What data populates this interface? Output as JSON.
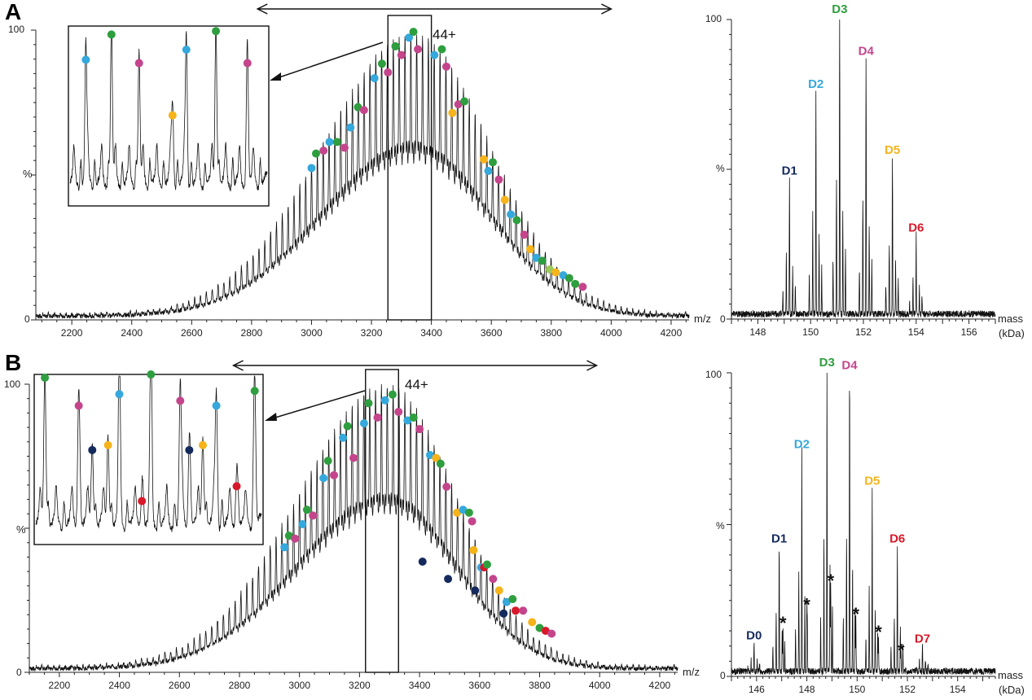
{
  "colors": {
    "green": "#2e9e3f",
    "cyan": "#35a8dc",
    "magenta": "#c4458c",
    "orange": "#f6b31a",
    "navy": "#152a5c",
    "red": "#d7192a",
    "lime": "#9cc95a",
    "trace": "#111111"
  },
  "chart_data": [
    {
      "id": "A-spectrum",
      "panel": "A",
      "type": "line",
      "xlabel": "m/z",
      "ylabel": "%",
      "xlim": [
        2080,
        4260
      ],
      "ylim": [
        0,
        100
      ],
      "x_ticks": [
        2200,
        2400,
        2600,
        2800,
        3000,
        3200,
        3400,
        3600,
        3800,
        4000,
        4200
      ],
      "y_tick_labels": [
        "0",
        "100"
      ],
      "envelope": {
        "center": 3340,
        "width_left": 430,
        "width_right": 360,
        "peak": 97,
        "floor": 2
      },
      "charge_label": "44+",
      "highlight_window_mz": [
        3255,
        3400
      ],
      "range_arrow_mz": [
        2820,
        4000
      ],
      "peak_markers": [
        {
          "mz": 3000,
          "i": 51,
          "c": "cyan"
        },
        {
          "mz": 3015,
          "i": 56,
          "c": "green"
        },
        {
          "mz": 3040,
          "i": 57,
          "c": "magenta"
        },
        {
          "mz": 3060,
          "i": 60,
          "c": "cyan"
        },
        {
          "mz": 3085,
          "i": 60,
          "c": "green"
        },
        {
          "mz": 3110,
          "i": 58,
          "c": "magenta"
        },
        {
          "mz": 3130,
          "i": 65,
          "c": "cyan"
        },
        {
          "mz": 3155,
          "i": 72,
          "c": "green"
        },
        {
          "mz": 3175,
          "i": 71,
          "c": "magenta"
        },
        {
          "mz": 3210,
          "i": 82,
          "c": "cyan"
        },
        {
          "mz": 3235,
          "i": 87,
          "c": "green"
        },
        {
          "mz": 3255,
          "i": 84,
          "c": "magenta"
        },
        {
          "mz": 3280,
          "i": 93,
          "c": "green"
        },
        {
          "mz": 3300,
          "i": 90,
          "c": "magenta"
        },
        {
          "mz": 3325,
          "i": 96,
          "c": "cyan"
        },
        {
          "mz": 3340,
          "i": 98,
          "c": "green"
        },
        {
          "mz": 3355,
          "i": 92,
          "c": "magenta"
        },
        {
          "mz": 3410,
          "i": 90,
          "c": "cyan"
        },
        {
          "mz": 3435,
          "i": 92,
          "c": "green"
        },
        {
          "mz": 3450,
          "i": 86,
          "c": "magenta"
        },
        {
          "mz": 3470,
          "i": 70,
          "c": "orange"
        },
        {
          "mz": 3490,
          "i": 73,
          "c": "magenta"
        },
        {
          "mz": 3510,
          "i": 74,
          "c": "green"
        },
        {
          "mz": 3575,
          "i": 54,
          "c": "orange"
        },
        {
          "mz": 3590,
          "i": 50,
          "c": "cyan"
        },
        {
          "mz": 3605,
          "i": 53,
          "c": "green"
        },
        {
          "mz": 3625,
          "i": 47,
          "c": "magenta"
        },
        {
          "mz": 3645,
          "i": 40,
          "c": "orange"
        },
        {
          "mz": 3665,
          "i": 35,
          "c": "cyan"
        },
        {
          "mz": 3685,
          "i": 33,
          "c": "green"
        },
        {
          "mz": 3710,
          "i": 28,
          "c": "magenta"
        },
        {
          "mz": 3730,
          "i": 23,
          "c": "orange"
        },
        {
          "mz": 3750,
          "i": 20,
          "c": "cyan"
        },
        {
          "mz": 3770,
          "i": 19,
          "c": "green"
        },
        {
          "mz": 3795,
          "i": 16,
          "c": "lime"
        },
        {
          "mz": 3815,
          "i": 15,
          "c": "orange"
        },
        {
          "mz": 3840,
          "i": 14,
          "c": "cyan"
        },
        {
          "mz": 3860,
          "i": 13,
          "c": "green"
        },
        {
          "mz": 3880,
          "i": 11,
          "c": "green"
        },
        {
          "mz": 3905,
          "i": 10,
          "c": "magenta"
        }
      ],
      "inset_markers": [
        {
          "pos": 0.08,
          "i": 0.8,
          "c": "cyan"
        },
        {
          "pos": 0.21,
          "i": 0.95,
          "c": "green"
        },
        {
          "pos": 0.35,
          "i": 0.78,
          "c": "magenta"
        },
        {
          "pos": 0.52,
          "i": 0.47,
          "c": "orange"
        },
        {
          "pos": 0.59,
          "i": 0.86,
          "c": "cyan"
        },
        {
          "pos": 0.74,
          "i": 0.97,
          "c": "green"
        },
        {
          "pos": 0.9,
          "i": 0.78,
          "c": "magenta"
        }
      ]
    },
    {
      "id": "A-deconvoluted",
      "panel": "A",
      "type": "line",
      "xlabel": "mass (kDa)",
      "ylabel": "%",
      "xlim": [
        147,
        157
      ],
      "ylim": [
        0,
        100
      ],
      "x_ticks": [
        148,
        150,
        152,
        154,
        156
      ],
      "y_tick_labels": [
        "0",
        "%",
        "100"
      ],
      "peaks": [
        {
          "label": "D1",
          "mass": 149.2,
          "i": 46,
          "c": "navy"
        },
        {
          "label": "D2",
          "mass": 150.2,
          "i": 75,
          "c": "cyan"
        },
        {
          "label": "D3",
          "mass": 151.1,
          "i": 100,
          "c": "green"
        },
        {
          "label": "D4",
          "mass": 152.1,
          "i": 86,
          "c": "magenta"
        },
        {
          "label": "D5",
          "mass": 153.1,
          "i": 53,
          "c": "orange"
        },
        {
          "label": "D6",
          "mass": 154.0,
          "i": 27,
          "c": "red"
        }
      ]
    },
    {
      "id": "B-spectrum",
      "panel": "B",
      "type": "line",
      "xlabel": "m/z",
      "ylabel": "%",
      "xlim": [
        2100,
        4260
      ],
      "ylim": [
        0,
        100
      ],
      "x_ticks": [
        2200,
        2400,
        2600,
        2800,
        3000,
        3200,
        3400,
        3600,
        3800,
        4000,
        4200
      ],
      "y_tick_labels": [
        "0",
        "100"
      ],
      "envelope": {
        "center": 3290,
        "width_left": 420,
        "width_right": 330,
        "peak": 98,
        "floor": 2
      },
      "charge_label": "44+",
      "highlight_window_mz": [
        3220,
        3330
      ],
      "range_arrow_mz": [
        2780,
        3990
      ],
      "peak_markers": [
        {
          "mz": 2950,
          "i": 42,
          "c": "cyan"
        },
        {
          "mz": 2965,
          "i": 46,
          "c": "green"
        },
        {
          "mz": 2985,
          "i": 45,
          "c": "magenta"
        },
        {
          "mz": 3010,
          "i": 50,
          "c": "cyan"
        },
        {
          "mz": 3025,
          "i": 55,
          "c": "green"
        },
        {
          "mz": 3045,
          "i": 53,
          "c": "magenta"
        },
        {
          "mz": 3080,
          "i": 66,
          "c": "cyan"
        },
        {
          "mz": 3095,
          "i": 72,
          "c": "green"
        },
        {
          "mz": 3115,
          "i": 67,
          "c": "magenta"
        },
        {
          "mz": 3145,
          "i": 80,
          "c": "cyan"
        },
        {
          "mz": 3160,
          "i": 84,
          "c": "green"
        },
        {
          "mz": 3180,
          "i": 73,
          "c": "magenta"
        },
        {
          "mz": 3215,
          "i": 85,
          "c": "cyan"
        },
        {
          "mz": 3230,
          "i": 92,
          "c": "green"
        },
        {
          "mz": 3260,
          "i": 87,
          "c": "magenta"
        },
        {
          "mz": 3285,
          "i": 93,
          "c": "cyan"
        },
        {
          "mz": 3310,
          "i": 95,
          "c": "green"
        },
        {
          "mz": 3330,
          "i": 89,
          "c": "magenta"
        },
        {
          "mz": 3360,
          "i": 86,
          "c": "cyan"
        },
        {
          "mz": 3380,
          "i": 87,
          "c": "green"
        },
        {
          "mz": 3400,
          "i": 83,
          "c": "magenta"
        },
        {
          "mz": 3435,
          "i": 74,
          "c": "cyan"
        },
        {
          "mz": 3455,
          "i": 73,
          "c": "orange"
        },
        {
          "mz": 3470,
          "i": 71,
          "c": "green"
        },
        {
          "mz": 3490,
          "i": 63,
          "c": "magenta"
        },
        {
          "mz": 3410,
          "i": 37,
          "c": "navy"
        },
        {
          "mz": 3495,
          "i": 31,
          "c": "navy"
        },
        {
          "mz": 3525,
          "i": 54,
          "c": "orange"
        },
        {
          "mz": 3545,
          "i": 55,
          "c": "cyan"
        },
        {
          "mz": 3565,
          "i": 54,
          "c": "green"
        },
        {
          "mz": 3575,
          "i": 51,
          "c": "magenta"
        },
        {
          "mz": 3580,
          "i": 41,
          "c": "orange"
        },
        {
          "mz": 3585,
          "i": 27,
          "c": "navy"
        },
        {
          "mz": 3605,
          "i": 35,
          "c": "cyan"
        },
        {
          "mz": 3615,
          "i": 35,
          "c": "red"
        },
        {
          "mz": 3625,
          "i": 36,
          "c": "green"
        },
        {
          "mz": 3645,
          "i": 31,
          "c": "magenta"
        },
        {
          "mz": 3665,
          "i": 27,
          "c": "orange"
        },
        {
          "mz": 3680,
          "i": 19,
          "c": "navy"
        },
        {
          "mz": 3690,
          "i": 23,
          "c": "cyan"
        },
        {
          "mz": 3710,
          "i": 24,
          "c": "green"
        },
        {
          "mz": 3720,
          "i": 20,
          "c": "red"
        },
        {
          "mz": 3745,
          "i": 20,
          "c": "magenta"
        },
        {
          "mz": 3775,
          "i": 16,
          "c": "orange"
        },
        {
          "mz": 3800,
          "i": 14,
          "c": "green"
        },
        {
          "mz": 3820,
          "i": 13,
          "c": "red"
        },
        {
          "mz": 3840,
          "i": 12,
          "c": "magenta"
        }
      ],
      "inset_markers": [
        {
          "pos": 0.04,
          "i": 0.96,
          "c": "green"
        },
        {
          "pos": 0.19,
          "i": 0.79,
          "c": "magenta"
        },
        {
          "pos": 0.25,
          "i": 0.52,
          "c": "navy"
        },
        {
          "pos": 0.32,
          "i": 0.55,
          "c": "orange"
        },
        {
          "pos": 0.37,
          "i": 0.86,
          "c": "cyan"
        },
        {
          "pos": 0.47,
          "i": 0.21,
          "c": "red"
        },
        {
          "pos": 0.51,
          "i": 0.98,
          "c": "green"
        },
        {
          "pos": 0.64,
          "i": 0.82,
          "c": "magenta"
        },
        {
          "pos": 0.68,
          "i": 0.52,
          "c": "navy"
        },
        {
          "pos": 0.74,
          "i": 0.55,
          "c": "orange"
        },
        {
          "pos": 0.8,
          "i": 0.79,
          "c": "cyan"
        },
        {
          "pos": 0.89,
          "i": 0.3,
          "c": "red"
        },
        {
          "pos": 0.97,
          "i": 0.88,
          "c": "green"
        }
      ]
    },
    {
      "id": "B-deconvoluted",
      "panel": "B",
      "type": "line",
      "xlabel": "mass (kDa)",
      "ylabel": "%",
      "xlim": [
        145,
        155.5
      ],
      "ylim": [
        0,
        100
      ],
      "x_ticks": [
        146,
        148,
        150,
        152,
        154
      ],
      "y_tick_labels": [
        "0",
        "%",
        "100"
      ],
      "peaks": [
        {
          "label": "D0",
          "mass": 145.9,
          "i": 10,
          "c": "navy"
        },
        {
          "label": "D1",
          "mass": 146.9,
          "i": 42,
          "c": "navy"
        },
        {
          "label": "D2",
          "mass": 147.8,
          "i": 73,
          "c": "cyan"
        },
        {
          "label": "D3",
          "mass": 148.8,
          "i": 100,
          "c": "green"
        },
        {
          "label": "D4",
          "mass": 149.7,
          "i": 99,
          "c": "magenta"
        },
        {
          "label": "D5",
          "mass": 150.6,
          "i": 61,
          "c": "orange"
        },
        {
          "label": "D6",
          "mass": 151.6,
          "i": 42,
          "c": "red"
        },
        {
          "label": "D7",
          "mass": 152.6,
          "i": 9,
          "c": "red"
        }
      ],
      "side_peaks": [
        {
          "mass": 147.05,
          "i": 15
        },
        {
          "mass": 148.0,
          "i": 21
        },
        {
          "mass": 148.95,
          "i": 29
        },
        {
          "mass": 149.95,
          "i": 18
        },
        {
          "mass": 150.85,
          "i": 12
        },
        {
          "mass": 151.75,
          "i": 6
        }
      ],
      "side_peak_marker": "*"
    }
  ],
  "panelA": {
    "letter": "A",
    "peak_labels": {
      "D1": "D1",
      "D2": "D2",
      "D3": "D3",
      "D4": "D4",
      "D5": "D5",
      "D6": "D6"
    }
  },
  "panelB": {
    "letter": "B",
    "peak_labels": {
      "D0": "D0",
      "D1": "D1",
      "D2": "D2",
      "D3": "D3",
      "D4": "D4",
      "D5": "D5",
      "D6": "D6",
      "D7": "D7"
    }
  },
  "axis_text": {
    "mz": "m/z",
    "mass": "mass",
    "kda": "(kDa)",
    "percent": "%",
    "y0": "0",
    "y100": "100",
    "charge": "44+"
  }
}
